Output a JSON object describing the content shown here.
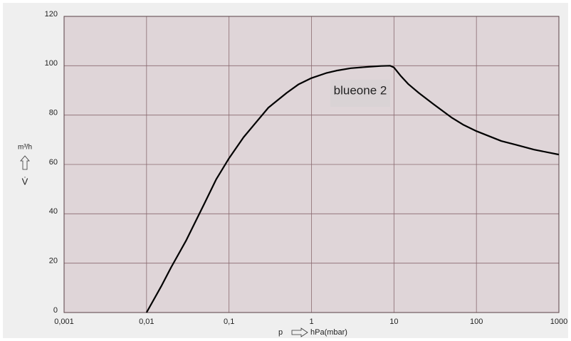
{
  "chart_data": {
    "type": "line",
    "x_log": true,
    "grid": true,
    "color": "#000000",
    "plot_background": "#dfd5d8",
    "annotation": "blueone 2",
    "y_label_unit": "m³/h",
    "y_label_symbol": "V̇",
    "x_label_symbol": "p",
    "x_label_unit": "hPa(mbar)",
    "x": [
      0.01,
      0.015,
      0.02,
      0.03,
      0.05,
      0.07,
      0.1,
      0.15,
      0.2,
      0.3,
      0.5,
      0.7,
      1,
      1.5,
      2,
      3,
      5,
      7,
      9,
      10,
      12,
      15,
      20,
      30,
      50,
      70,
      100,
      200,
      300,
      500,
      1000
    ],
    "values": [
      0,
      10.5,
      18.5,
      29,
      44,
      54,
      62.5,
      71,
      76,
      83,
      89,
      92.5,
      95,
      97,
      98,
      99,
      99.6,
      99.9,
      100,
      99.3,
      96,
      92.5,
      89,
      84.5,
      79,
      76,
      73.5,
      69.5,
      68,
      66,
      64
    ],
    "xlim": [
      0.001,
      1000
    ],
    "ylim": [
      0,
      120
    ],
    "xticks": [
      {
        "value": 0.001,
        "label": "0,001"
      },
      {
        "value": 0.01,
        "label": "0,01"
      },
      {
        "value": 0.1,
        "label": "0,1"
      },
      1,
      10,
      100,
      1000
    ],
    "yticks": [
      0,
      20,
      40,
      60,
      80,
      100,
      120
    ]
  }
}
